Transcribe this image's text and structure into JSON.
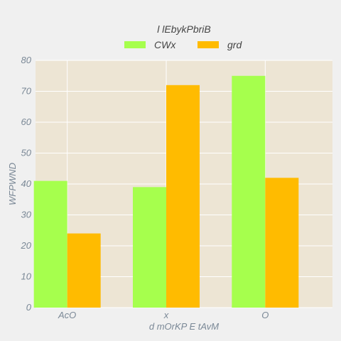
{
  "chart_data": {
    "type": "bar",
    "title": "",
    "legend_title": "l lEbykPbriB",
    "legend_position": "top-center",
    "xlabel": "d mOrKP E tAvM",
    "ylabel": "WFPWND",
    "categories": [
      "AcO",
      "x",
      "O"
    ],
    "series": [
      {
        "name": "CWx",
        "values": [
          41,
          39,
          75
        ],
        "color": "#a6ff4d"
      },
      {
        "name": "grd",
        "values": [
          24,
          72,
          42
        ],
        "color": "#ffbb00"
      }
    ],
    "ylim": [
      0,
      80
    ],
    "yticks": [
      0,
      10,
      20,
      30,
      40,
      50,
      60,
      70,
      80
    ],
    "grid": true
  },
  "colors": {
    "plot_background": "#ede5d4",
    "page_background": "#f0f0f0",
    "grid": "#ffffff",
    "tick_text": "#7a8896"
  }
}
